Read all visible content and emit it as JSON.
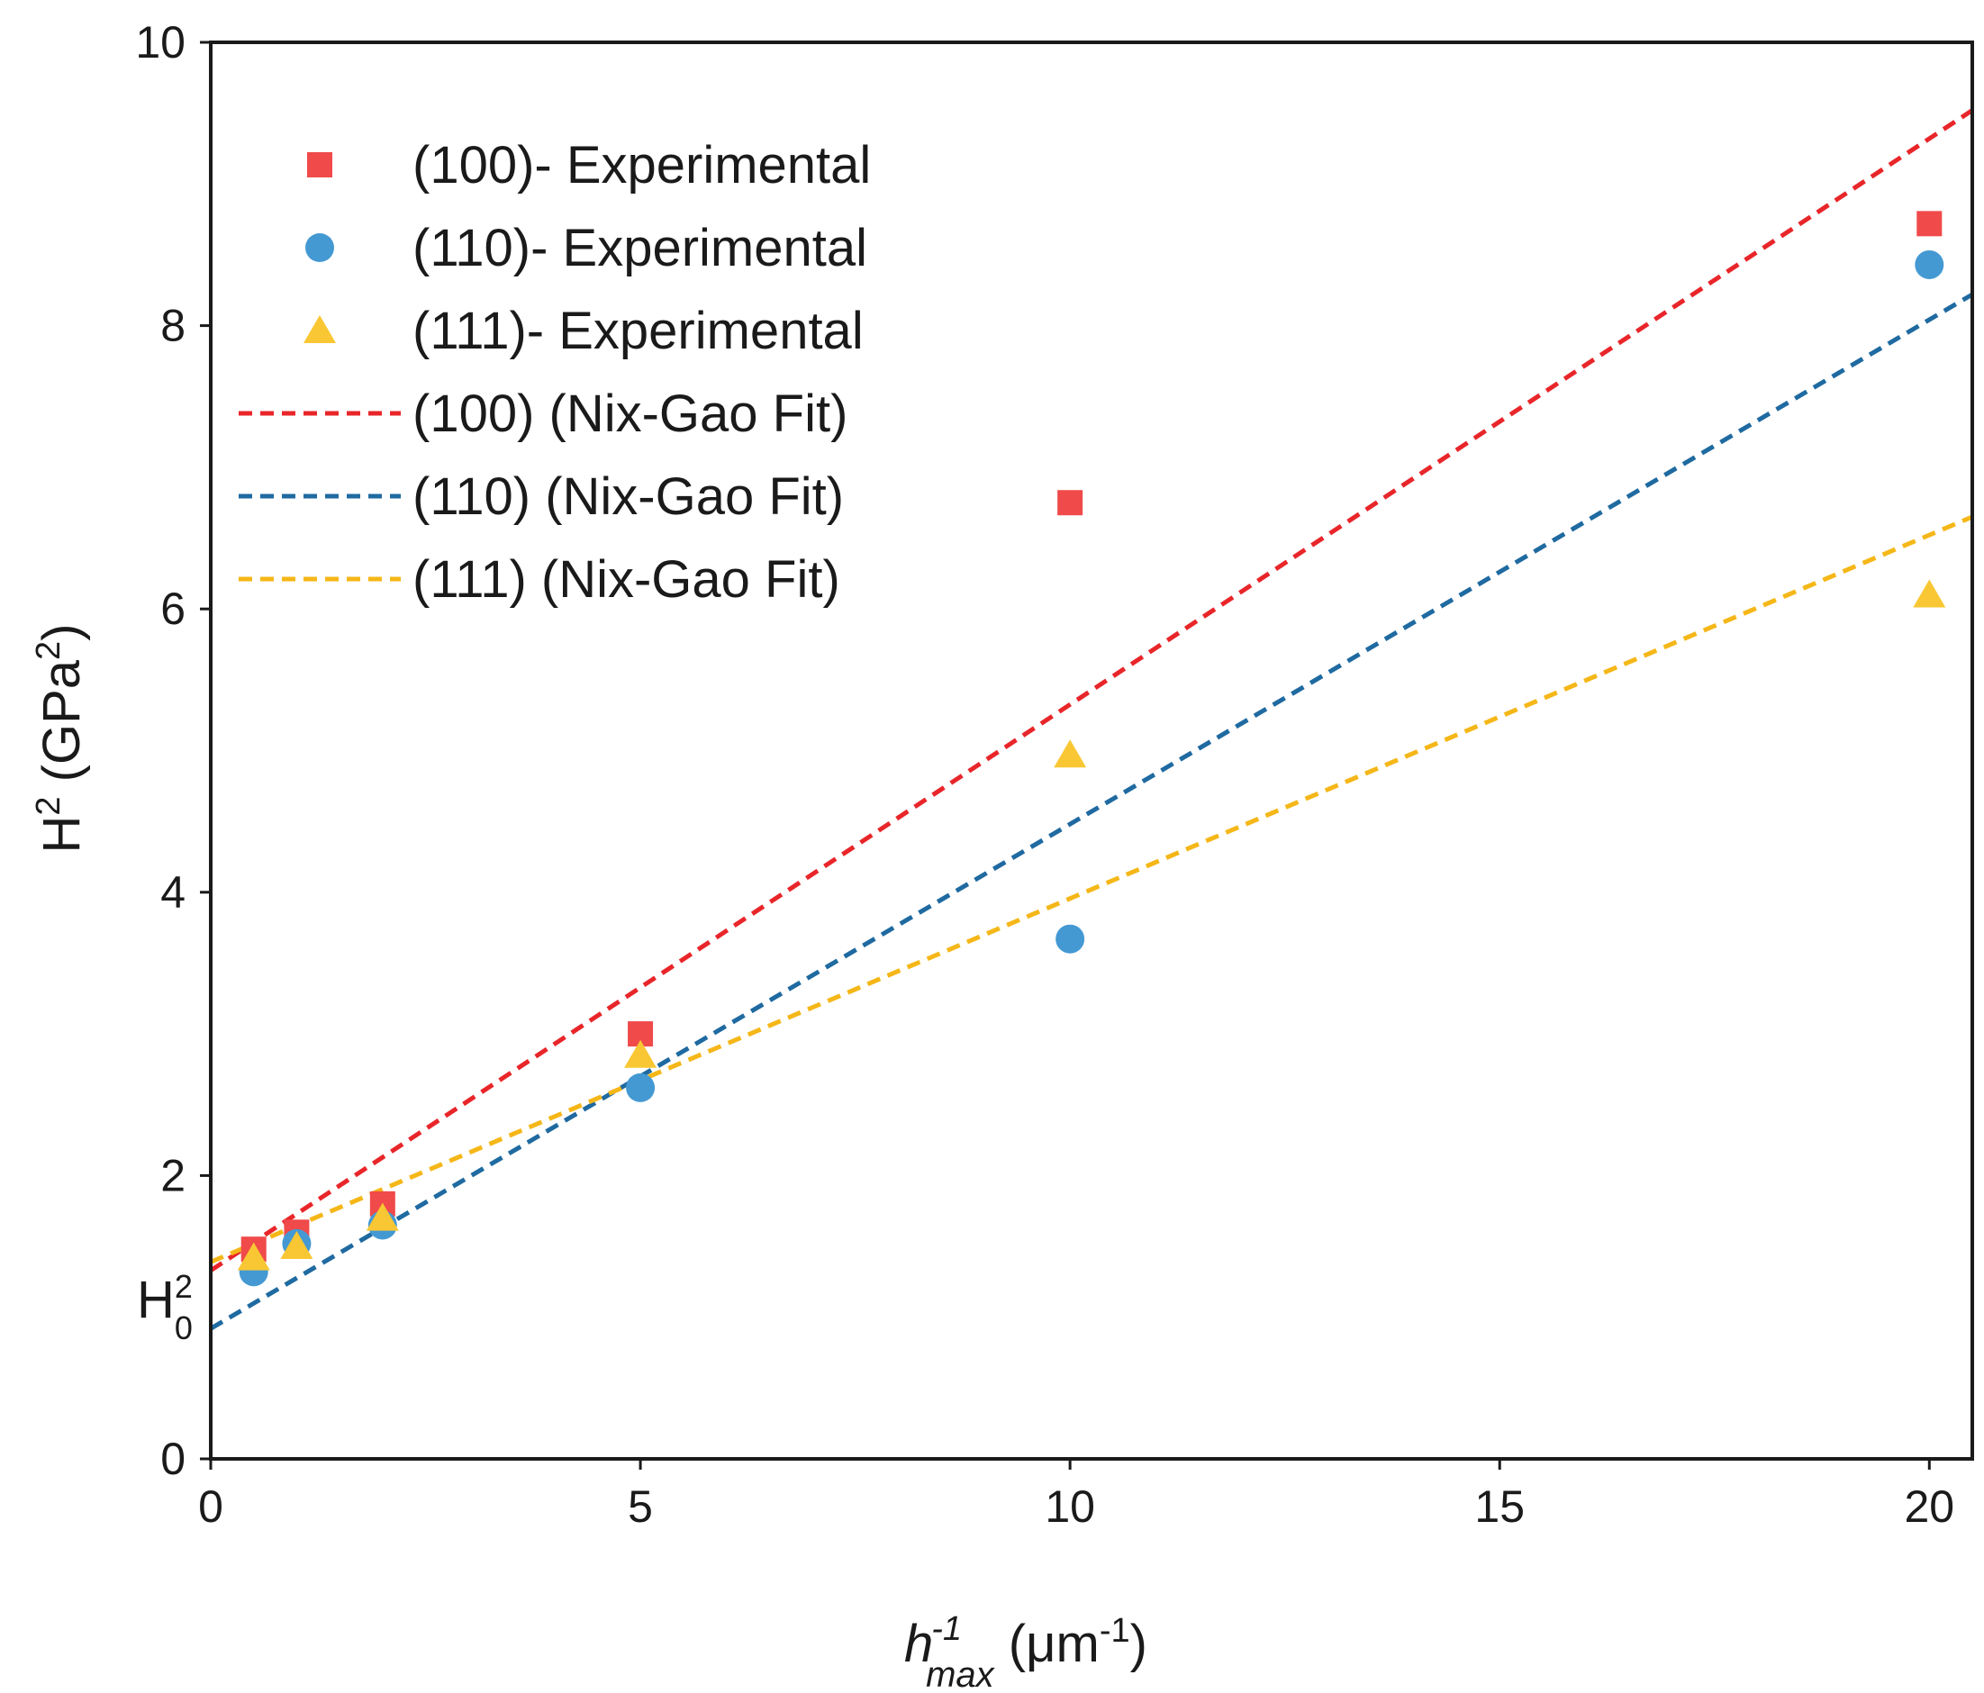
{
  "chart_data": {
    "type": "scatter",
    "xlabel": {
      "base": "h",
      "sup": "-1",
      "sub": "max",
      "unit_open": " (μm",
      "unit_sup": "-1",
      "unit_close": ")"
    },
    "ylabel": {
      "base": "H",
      "sup": "2",
      "unit_open": " (GPa",
      "unit_sup": "2",
      "unit_close": ")"
    },
    "xlim": [
      0,
      20.5
    ],
    "ylim": [
      0,
      10
    ],
    "x_ticks": [
      "0",
      "5",
      "10",
      "15",
      "20"
    ],
    "y_ticks": [
      "0",
      "2",
      "4",
      "6",
      "8",
      "10"
    ],
    "legend_position": "top-left",
    "grid": false,
    "annotation": {
      "base": "H",
      "sup": "2",
      "sub": "0",
      "y": 1.0
    },
    "series": [
      {
        "name": "(100)- Experimental",
        "kind": "points",
        "marker": "square",
        "color": "#f04a4a",
        "points": [
          [
            0.5,
            1.48
          ],
          [
            1,
            1.6
          ],
          [
            2,
            1.8
          ],
          [
            5,
            3.0
          ],
          [
            10,
            6.75
          ],
          [
            20,
            8.72
          ]
        ]
      },
      {
        "name": "(110)- Experimental",
        "kind": "points",
        "marker": "circle",
        "color": "#4499d3",
        "points": [
          [
            0.5,
            1.32
          ],
          [
            1,
            1.52
          ],
          [
            2,
            1.65
          ],
          [
            5,
            2.62
          ],
          [
            10,
            3.67
          ],
          [
            20,
            8.43
          ]
        ]
      },
      {
        "name": "(111)- Experimental",
        "kind": "points",
        "marker": "triangle",
        "color": "#f9c733",
        "points": [
          [
            0.5,
            1.42
          ],
          [
            1,
            1.5
          ],
          [
            2,
            1.7
          ],
          [
            5,
            2.85
          ],
          [
            10,
            4.97
          ],
          [
            20,
            6.1
          ]
        ]
      },
      {
        "name": "(100) (Nix-Gao Fit)",
        "kind": "line",
        "color": "#e8262a",
        "points": [
          [
            0,
            1.33
          ],
          [
            20.5,
            9.52
          ]
        ]
      },
      {
        "name": "(110) (Nix-Gao Fit)",
        "kind": "line",
        "color": "#1f6aa0",
        "points": [
          [
            0,
            0.92
          ],
          [
            20.5,
            8.22
          ]
        ]
      },
      {
        "name": "(111) (Nix-Gao Fit)",
        "kind": "line",
        "color": "#f5b718",
        "points": [
          [
            0,
            1.39
          ],
          [
            20.5,
            6.65
          ]
        ]
      }
    ]
  }
}
